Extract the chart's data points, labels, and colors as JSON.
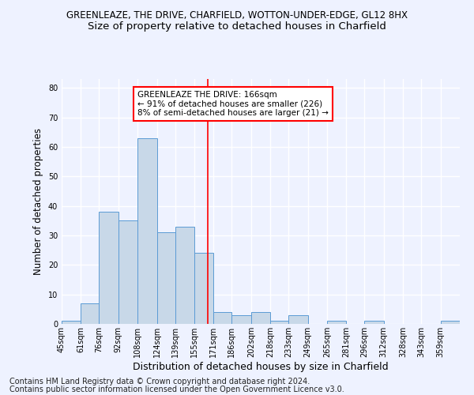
{
  "title1": "GREENLEAZE, THE DRIVE, CHARFIELD, WOTTON-UNDER-EDGE, GL12 8HX",
  "title2": "Size of property relative to detached houses in Charfield",
  "xlabel": "Distribution of detached houses by size in Charfield",
  "ylabel": "Number of detached properties",
  "categories": [
    "45sqm",
    "61sqm",
    "76sqm",
    "92sqm",
    "108sqm",
    "124sqm",
    "139sqm",
    "155sqm",
    "171sqm",
    "186sqm",
    "202sqm",
    "218sqm",
    "233sqm",
    "249sqm",
    "265sqm",
    "281sqm",
    "296sqm",
    "312sqm",
    "328sqm",
    "343sqm",
    "359sqm"
  ],
  "values": [
    1,
    7,
    38,
    35,
    63,
    31,
    33,
    24,
    4,
    3,
    4,
    1,
    3,
    0,
    1,
    0,
    1,
    0,
    0,
    0,
    1
  ],
  "bar_color": "#c8d8e8",
  "bar_edge_color": "#5b9bd5",
  "bin_edges": [
    45,
    61,
    76,
    92,
    108,
    124,
    139,
    155,
    171,
    186,
    202,
    218,
    233,
    249,
    265,
    281,
    296,
    312,
    328,
    343,
    359,
    375
  ],
  "vline_x": 166,
  "annotation_text": "GREENLEAZE THE DRIVE: 166sqm\n← 91% of detached houses are smaller (226)\n8% of semi-detached houses are larger (21) →",
  "annotation_box_color": "white",
  "annotation_box_edge": "red",
  "vline_color": "red",
  "ylim": [
    0,
    83
  ],
  "yticks": [
    0,
    10,
    20,
    30,
    40,
    50,
    60,
    70,
    80
  ],
  "footnote1": "Contains HM Land Registry data © Crown copyright and database right 2024.",
  "footnote2": "Contains public sector information licensed under the Open Government Licence v3.0.",
  "background_color": "#eef2ff",
  "grid_color": "#ffffff",
  "title1_fontsize": 8.5,
  "title2_fontsize": 9.5,
  "ylabel_fontsize": 8.5,
  "xlabel_fontsize": 9,
  "tick_fontsize": 7,
  "footnote_fontsize": 7,
  "ann_fontsize": 7.5
}
